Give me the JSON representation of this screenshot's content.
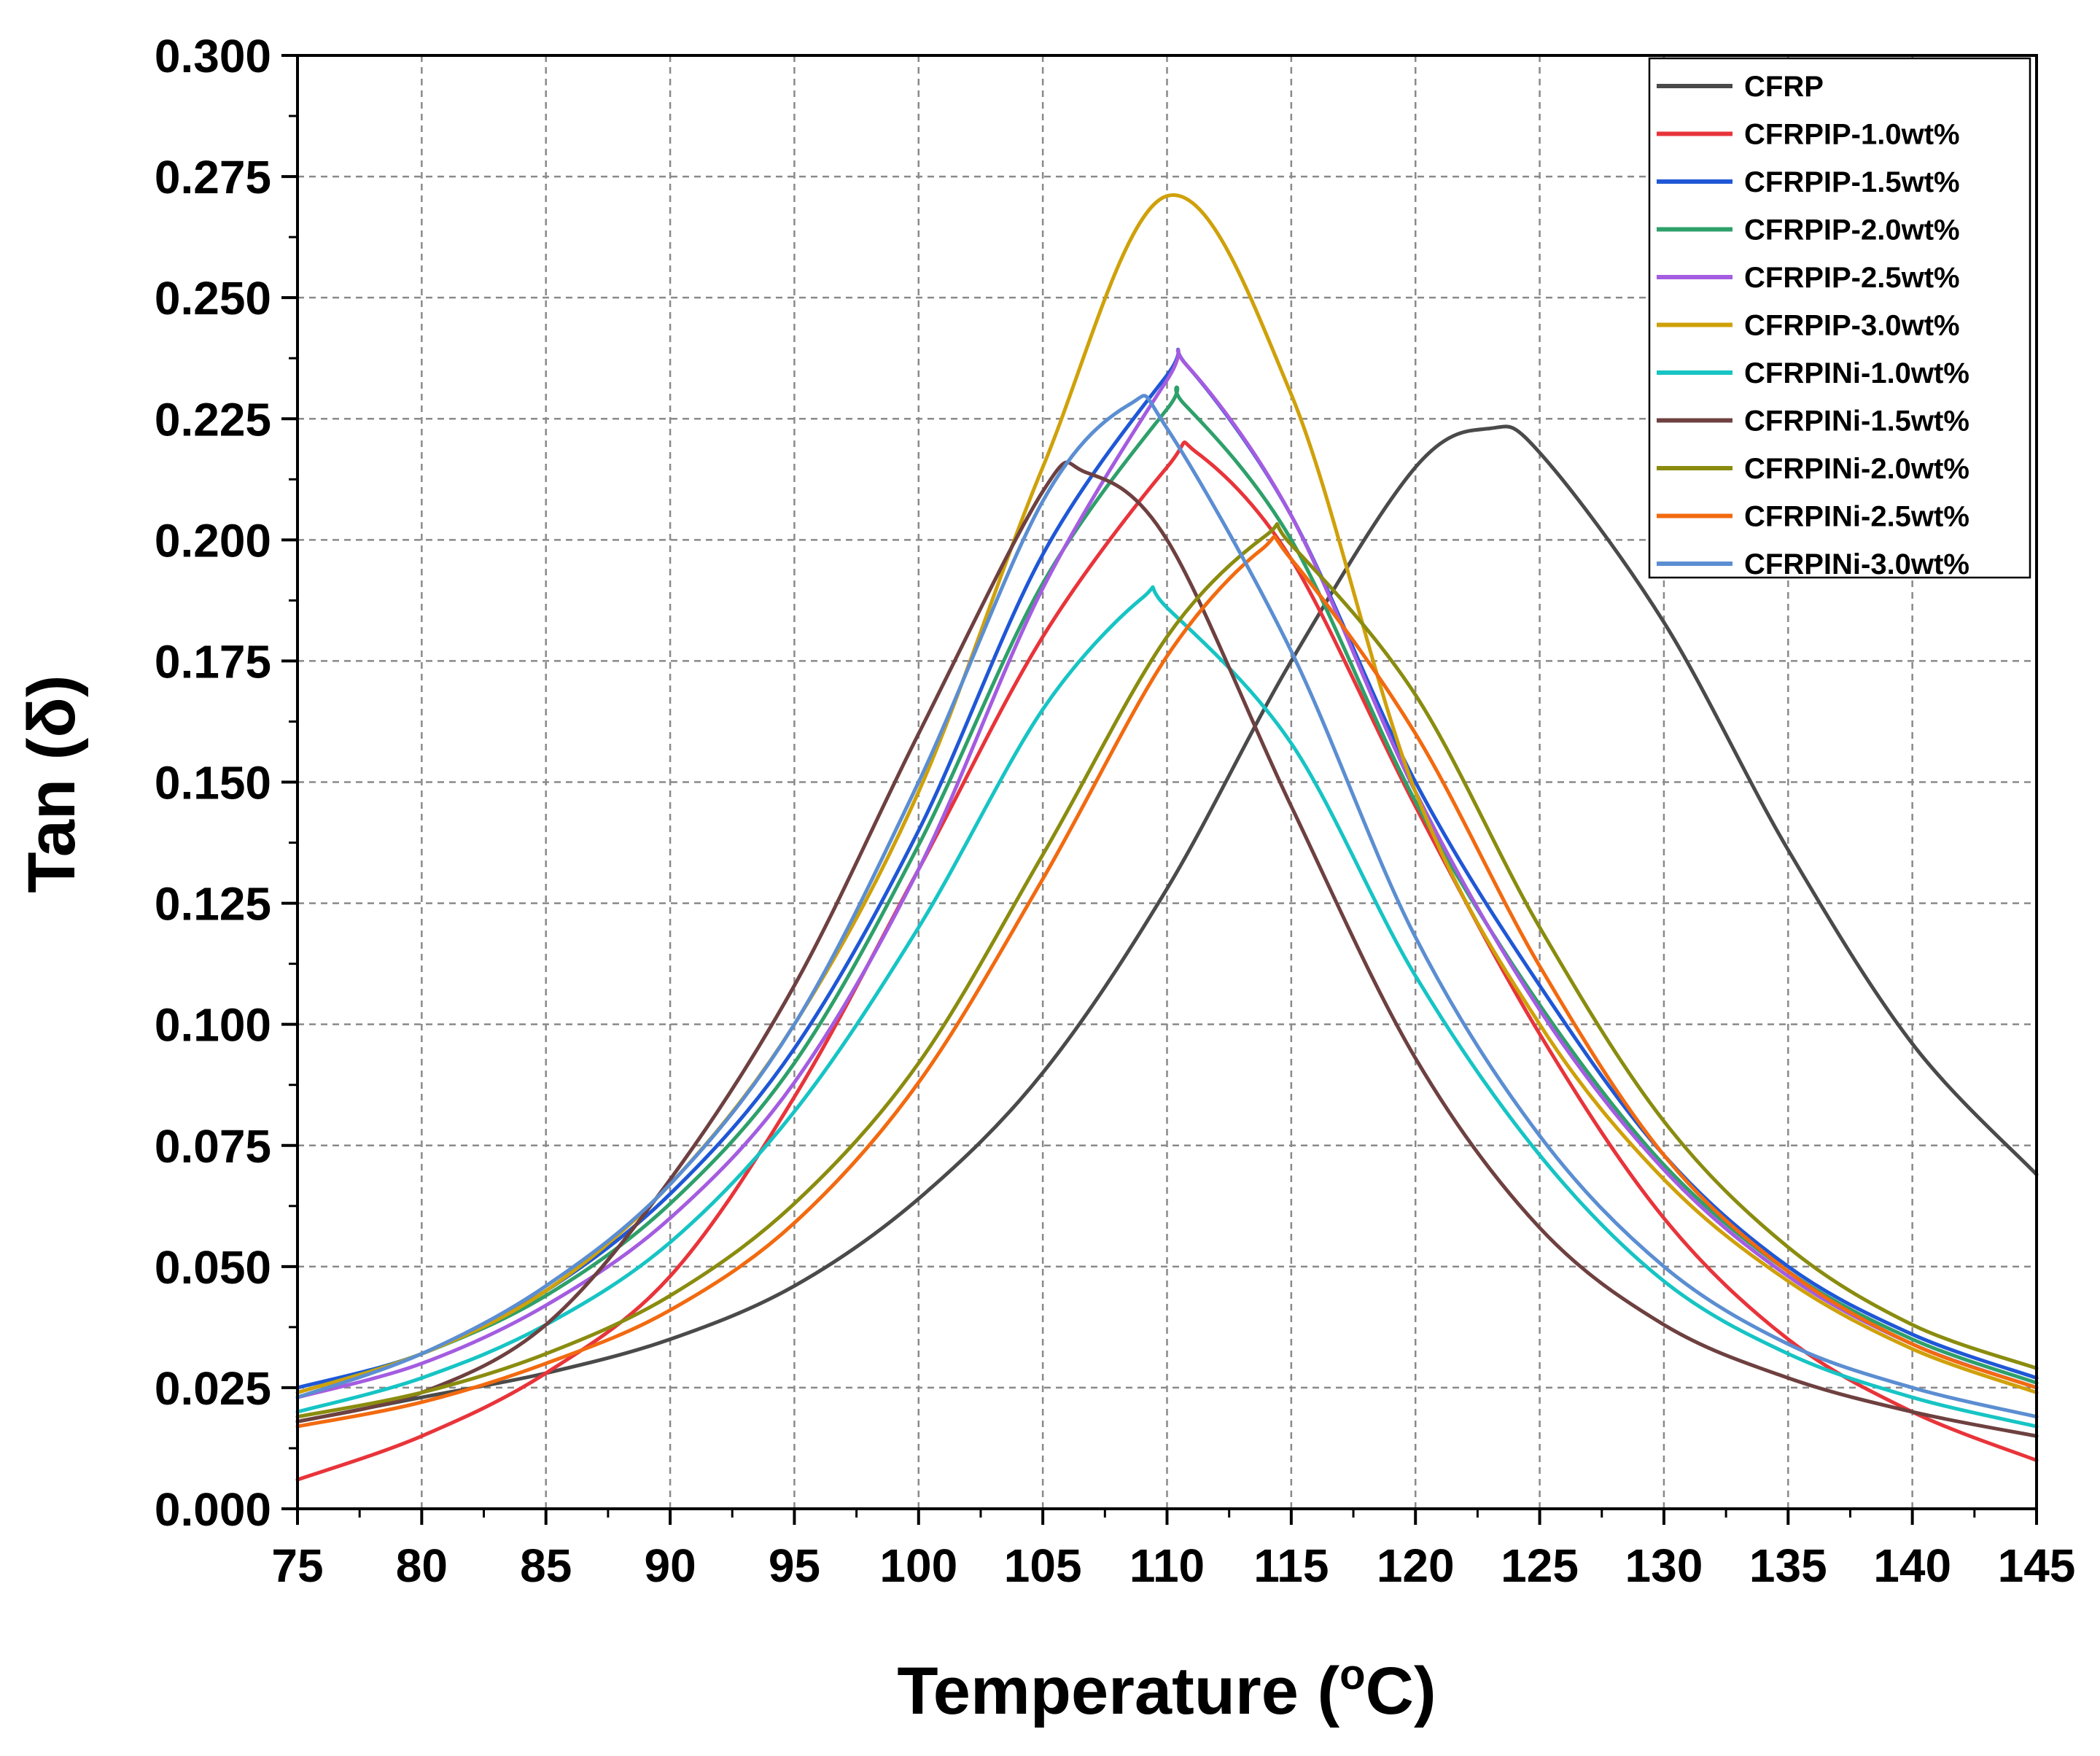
{
  "chart_data": {
    "type": "line",
    "title": "",
    "xlabel": "Temperature (",
    "xlabel_sup": "o",
    "xlabel_end": "C)",
    "ylabel": "Tan (δ)",
    "xlim": [
      75,
      145
    ],
    "ylim": [
      0,
      0.3
    ],
    "grid": true,
    "legend_position": "top-right",
    "x_ticks": [
      "75",
      "80",
      "85",
      "90",
      "95",
      "100",
      "105",
      "110",
      "115",
      "120",
      "125",
      "130",
      "135",
      "140",
      "145"
    ],
    "y_ticks": [
      "0.000",
      "0.025",
      "0.050",
      "0.075",
      "0.100",
      "0.125",
      "0.150",
      "0.175",
      "0.200",
      "0.225",
      "0.250",
      "0.275",
      "0.300"
    ],
    "x": [
      75,
      80,
      85,
      90,
      95,
      100,
      105,
      110,
      115,
      120,
      125,
      130,
      135,
      140,
      145
    ],
    "series": [
      {
        "name": "CFRP",
        "color": "#4a4a4a",
        "peak_x": 123.0,
        "peak_y": 0.223,
        "values": [
          0.018,
          0.023,
          0.028,
          0.035,
          0.046,
          0.064,
          0.09,
          0.128,
          0.175,
          0.215,
          0.218,
          0.183,
          0.136,
          0.096,
          0.069
        ]
      },
      {
        "name": "CFRPIP-1.0wt%",
        "color": "#e8343a",
        "peak_x": 111.2,
        "peak_y": 0.218,
        "values": [
          0.006,
          0.015,
          0.028,
          0.048,
          0.085,
          0.132,
          0.18,
          0.215,
          0.196,
          0.145,
          0.098,
          0.06,
          0.035,
          0.02,
          0.01
        ]
      },
      {
        "name": "CFRPIP-1.5wt%",
        "color": "#1f57d6",
        "peak_x": 110.8,
        "peak_y": 0.236,
        "values": [
          0.025,
          0.032,
          0.045,
          0.065,
          0.095,
          0.14,
          0.197,
          0.234,
          0.205,
          0.15,
          0.108,
          0.073,
          0.05,
          0.036,
          0.027
        ]
      },
      {
        "name": "CFRPIP-2.0wt%",
        "color": "#2ea06a",
        "peak_x": 110.7,
        "peak_y": 0.228,
        "values": [
          0.024,
          0.032,
          0.044,
          0.063,
          0.092,
          0.137,
          0.191,
          0.227,
          0.2,
          0.146,
          0.104,
          0.071,
          0.049,
          0.035,
          0.026
        ]
      },
      {
        "name": "CFRPIP-2.5wt%",
        "color": "#a45ce0",
        "peak_x": 110.8,
        "peak_y": 0.236,
        "values": [
          0.023,
          0.03,
          0.042,
          0.06,
          0.088,
          0.132,
          0.19,
          0.233,
          0.205,
          0.148,
          0.103,
          0.07,
          0.048,
          0.034,
          0.025
        ]
      },
      {
        "name": "CFRPIP-3.0wt%",
        "color": "#cfa10a",
        "peak_x": 110.0,
        "peak_y": 0.271,
        "values": [
          0.024,
          0.032,
          0.045,
          0.067,
          0.1,
          0.148,
          0.215,
          0.271,
          0.23,
          0.148,
          0.1,
          0.068,
          0.047,
          0.033,
          0.024
        ]
      },
      {
        "name": "CFRPINi-1.0wt%",
        "color": "#17c4c4",
        "peak_x": 109.0,
        "peak_y": 0.188,
        "values": [
          0.02,
          0.027,
          0.038,
          0.055,
          0.082,
          0.12,
          0.165,
          0.186,
          0.158,
          0.11,
          0.073,
          0.047,
          0.032,
          0.023,
          0.017
        ]
      },
      {
        "name": "CFRPINi-1.5wt%",
        "color": "#6e4040",
        "peak_x": 106.7,
        "peak_y": 0.214,
        "values": [
          0.018,
          0.024,
          0.038,
          0.068,
          0.108,
          0.16,
          0.21,
          0.2,
          0.145,
          0.093,
          0.058,
          0.038,
          0.027,
          0.02,
          0.015
        ]
      },
      {
        "name": "CFRPINi-2.0wt%",
        "color": "#8a8c0f",
        "peak_x": 114.0,
        "peak_y": 0.201,
        "values": [
          0.019,
          0.024,
          0.032,
          0.044,
          0.063,
          0.092,
          0.135,
          0.18,
          0.199,
          0.168,
          0.12,
          0.08,
          0.054,
          0.038,
          0.029
        ]
      },
      {
        "name": "CFRPINi-2.5wt%",
        "color": "#f26a10",
        "peak_x": 113.8,
        "peak_y": 0.198,
        "values": [
          0.017,
          0.022,
          0.03,
          0.041,
          0.059,
          0.088,
          0.13,
          0.176,
          0.196,
          0.16,
          0.112,
          0.073,
          0.049,
          0.034,
          0.025
        ]
      },
      {
        "name": "CFRPINi-3.0wt%",
        "color": "#5b8ed2",
        "peak_x": 108.5,
        "peak_y": 0.228,
        "values": [
          0.023,
          0.032,
          0.046,
          0.067,
          0.1,
          0.15,
          0.208,
          0.223,
          0.177,
          0.118,
          0.077,
          0.05,
          0.034,
          0.025,
          0.019
        ]
      }
    ]
  }
}
